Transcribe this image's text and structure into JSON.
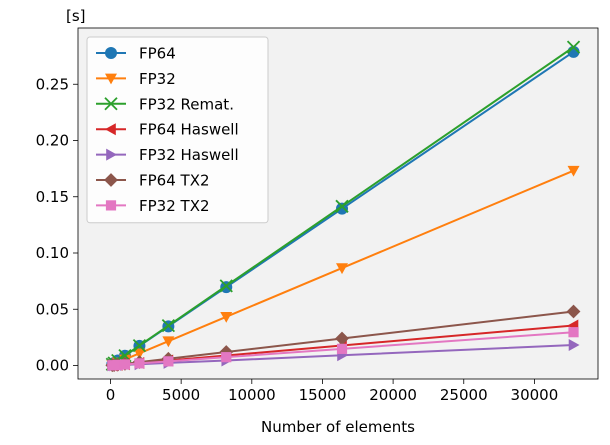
{
  "chart_data": {
    "type": "line",
    "title": "",
    "xlabel": "Number of elements",
    "ylabel": "[s]",
    "xlim": [
      -2300,
      34500
    ],
    "ylim": [
      -0.012,
      0.3
    ],
    "xticks": [
      0,
      5000,
      10000,
      15000,
      20000,
      25000,
      30000
    ],
    "xtick_labels": [
      "0",
      "5000",
      "10000",
      "15000",
      "20000",
      "25000",
      "30000"
    ],
    "yticks": [
      0.0,
      0.05,
      0.1,
      0.15,
      0.2,
      0.25
    ],
    "ytick_labels": [
      "0.00",
      "0.05",
      "0.10",
      "0.15",
      "0.20",
      "0.25"
    ],
    "grid": false,
    "background": "#f2f2f2",
    "legend_position": "top-left",
    "x": [
      128,
      256,
      512,
      1024,
      2048,
      4096,
      8192,
      16384,
      32768
    ],
    "series": [
      {
        "name": "FP64",
        "color": "#1f77b4",
        "marker": "circle",
        "values": [
          0.0011,
          0.0022,
          0.0044,
          0.0087,
          0.0174,
          0.0348,
          0.0697,
          0.1394,
          0.2788
        ]
      },
      {
        "name": "FP32",
        "color": "#ff7f0e",
        "marker": "triangle-down",
        "values": [
          0.0007,
          0.0014,
          0.0027,
          0.0054,
          0.0108,
          0.0216,
          0.0433,
          0.0866,
          0.1732
        ]
      },
      {
        "name": "FP32 Remat.",
        "color": "#2ca02c",
        "marker": "x",
        "values": [
          0.0011,
          0.0022,
          0.0044,
          0.0088,
          0.0177,
          0.0354,
          0.0708,
          0.1415,
          0.283
        ]
      },
      {
        "name": "FP64 Haswell",
        "color": "#d62728",
        "marker": "triangle-left",
        "values": [
          0.0001,
          0.0003,
          0.0006,
          0.0011,
          0.0022,
          0.0044,
          0.0089,
          0.0178,
          0.0356
        ]
      },
      {
        "name": "FP32 Haswell",
        "color": "#9467bd",
        "marker": "triangle-right",
        "values": [
          0.0001,
          0.0001,
          0.0003,
          0.0006,
          0.0011,
          0.0023,
          0.0045,
          0.0091,
          0.0182
        ]
      },
      {
        "name": "FP64 TX2",
        "color": "#8c564b",
        "marker": "diamond",
        "values": [
          0.0002,
          0.0004,
          0.0007,
          0.0015,
          0.003,
          0.006,
          0.012,
          0.024,
          0.048
        ]
      },
      {
        "name": "FP32 TX2",
        "color": "#e377c2",
        "marker": "square",
        "values": [
          0.0001,
          0.0002,
          0.0005,
          0.0009,
          0.0019,
          0.0037,
          0.0074,
          0.0148,
          0.0296
        ]
      }
    ]
  }
}
